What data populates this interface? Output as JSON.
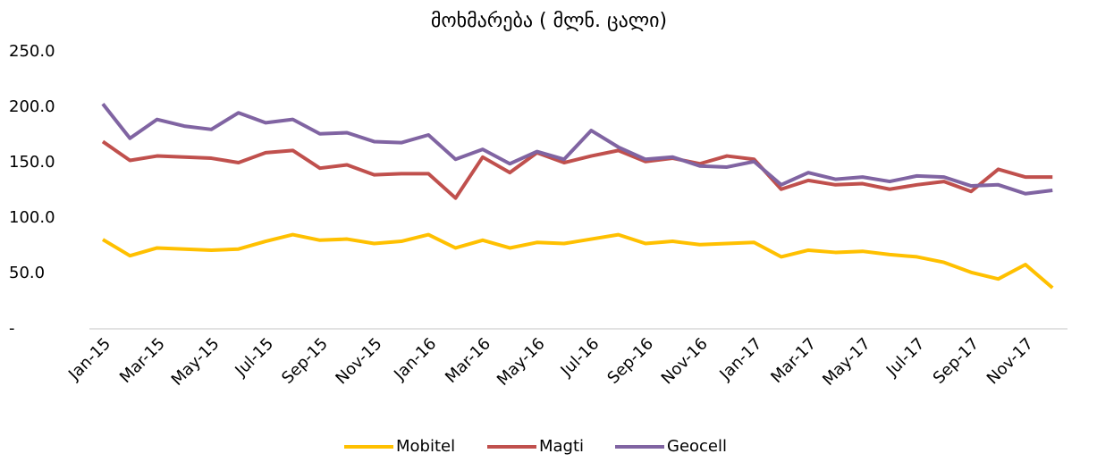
{
  "chart_data": {
    "type": "line",
    "title": "მოხმარება ( მლნ.  ცალი)",
    "categories": [
      "Jan-15",
      null,
      "Mar-15",
      null,
      "May-15",
      null,
      "Jul-15",
      null,
      "Sep-15",
      null,
      "Nov-15",
      null,
      "Jan-16",
      null,
      "Mar-16",
      null,
      "May-16",
      null,
      "Jul-16",
      null,
      "Sep-16",
      null,
      "Nov-16",
      null,
      "Jan-17",
      null,
      "Mar-17",
      null,
      "May-17",
      null,
      "Jul-17",
      null,
      "Sep-17",
      null,
      "Nov-17",
      null
    ],
    "series": [
      {
        "name": "Mobitel",
        "color": "#FFC000",
        "values": [
          80.6,
          66,
          73,
          72,
          71,
          72,
          79,
          85,
          80,
          81,
          77,
          79,
          85,
          73,
          80,
          73,
          78,
          77,
          81,
          85,
          77,
          79,
          76,
          77,
          78,
          65,
          71,
          69,
          70,
          67,
          65,
          60,
          51,
          45,
          58,
          37
        ]
      },
      {
        "name": "Magti",
        "color": "#C0504D",
        "values": [
          169,
          152,
          156,
          155,
          154,
          150,
          159,
          161,
          145,
          148,
          139,
          140,
          140,
          118,
          155,
          141,
          159,
          150,
          156,
          161,
          151,
          154,
          149,
          156,
          153,
          126,
          134,
          130,
          131,
          126,
          130,
          133,
          124,
          144,
          137,
          137
        ]
      },
      {
        "name": "Geocell",
        "color": "#8064A2",
        "values": [
          203,
          172,
          189,
          183,
          180,
          195,
          186,
          189,
          176,
          177,
          169,
          168,
          175,
          153,
          162,
          149,
          160,
          153,
          179,
          164,
          153,
          155,
          147,
          146,
          151,
          130,
          141,
          135,
          137,
          133,
          138,
          137,
          129,
          130,
          122,
          125
        ]
      }
    ],
    "ylim": [
      0,
      250
    ],
    "yticks": [
      {
        "value": 0,
        "label": "-"
      },
      {
        "value": 50,
        "label": "50.0"
      },
      {
        "value": 100,
        "label": "100.0"
      },
      {
        "value": 150,
        "label": "150.0"
      },
      {
        "value": 200,
        "label": "200.0"
      },
      {
        "value": 250,
        "label": "250.0"
      }
    ],
    "legend": "bottom"
  }
}
